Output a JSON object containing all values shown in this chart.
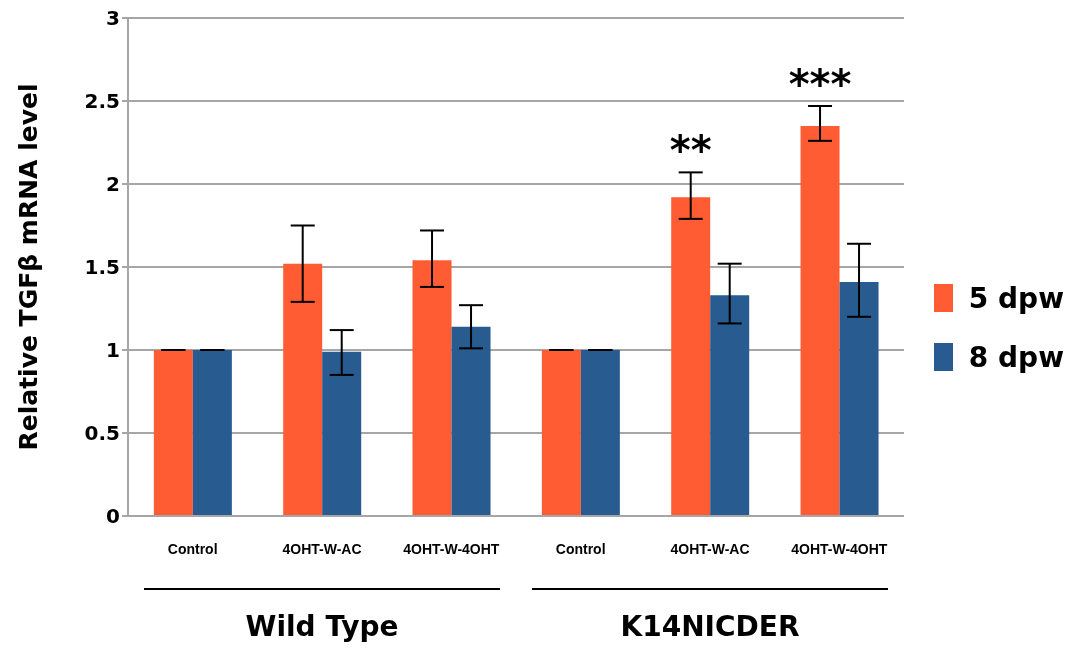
{
  "chart_data": {
    "type": "bar",
    "ylabel": "Relative TGFβ mRNA level",
    "categories": [
      "Control",
      "4OHT-W-AC",
      "4OHT-W-4OHT",
      "Control",
      "4OHT-W-AC",
      "4OHT-W-4OHT"
    ],
    "series": [
      {
        "name": "5 dpw",
        "color": "#ff5c33",
        "values": [
          1,
          1.52,
          1.54,
          1,
          1.92,
          2.35
        ],
        "errors": [
          0,
          [
            1.29,
            1.75
          ],
          [
            1.38,
            1.72
          ],
          0,
          [
            1.79,
            2.07
          ],
          [
            2.26,
            2.47
          ]
        ],
        "value_labels": [
          null,
          null,
          null,
          null,
          "**",
          "***"
        ]
      },
      {
        "name": "8 dpw",
        "color": "#285b8f",
        "values": [
          1,
          0.99,
          1.14,
          1,
          1.33,
          1.41
        ],
        "errors": [
          0,
          [
            0.85,
            1.12
          ],
          [
            1.01,
            1.27
          ],
          0,
          [
            1.16,
            1.52
          ],
          [
            1.2,
            1.64
          ]
        ]
      }
    ],
    "ylim": [
      0,
      3
    ],
    "yticks": [
      0,
      0.5,
      1,
      1.5,
      2,
      2.5,
      3
    ],
    "grid": "y",
    "legend": "right",
    "annotations": [
      "Wild Type",
      "K14NICDER"
    ]
  }
}
